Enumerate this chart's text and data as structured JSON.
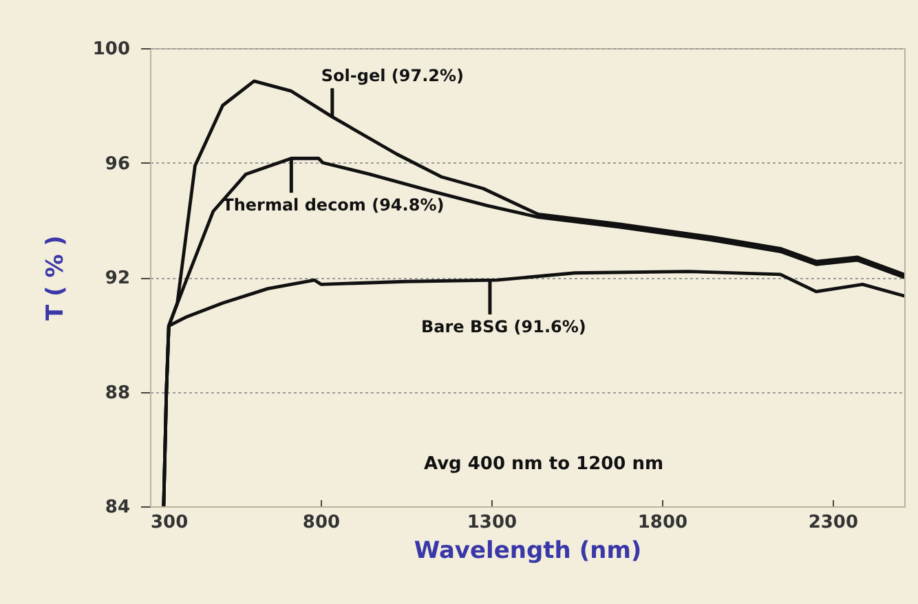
{
  "chart_data": {
    "type": "line",
    "xlabel": "Wavelength (nm)",
    "ylabel": "T ( % )",
    "xlim": [
      300,
      2510
    ],
    "xticks": [
      300,
      800,
      1300,
      1800,
      2300
    ],
    "ylim": [
      84,
      100
    ],
    "yticks": [
      84,
      88,
      92,
      96,
      100
    ],
    "grid": "y",
    "line_style": "solid",
    "series": [
      {
        "color": "#111111",
        "x": [
          340,
          348,
          355,
          380,
          432,
          513,
          605,
          714,
          834,
          1023,
          1155,
          1276,
          1437,
          1677,
          1946,
          2147,
          2252,
          2372,
          2509
        ],
        "values": [
          84,
          88,
          90.3,
          91.1,
          95.9,
          98.0,
          98.85,
          98.5,
          97.6,
          96.3,
          95.5,
          95.1,
          94.2,
          93.85,
          93.4,
          93.0,
          92.55,
          92.7,
          92.1
        ]
      },
      {
        "color": "#111111",
        "x": [
          340,
          348,
          355,
          400,
          485,
          581,
          714,
          794,
          806,
          943,
          1127,
          1288,
          1437,
          1677,
          1946,
          2147,
          2252,
          2372,
          2509
        ],
        "values": [
          84,
          88,
          90.3,
          91.7,
          94.3,
          95.6,
          96.15,
          96.15,
          96.0,
          95.6,
          95.0,
          94.5,
          94.1,
          93.75,
          93.3,
          92.9,
          92.45,
          92.6,
          92.0
        ]
      },
      {
        "color": "#111111",
        "x": [
          340,
          348,
          355,
          404,
          513,
          645,
          782,
          802,
          1047,
          1316,
          1545,
          1878,
          2147,
          2252,
          2388,
          2509
        ],
        "values": [
          84,
          88,
          90.3,
          90.6,
          91.1,
          91.6,
          91.9,
          91.75,
          91.85,
          91.9,
          92.15,
          92.2,
          92.1,
          91.5,
          91.75,
          91.35
        ]
      }
    ],
    "annotations": [
      {
        "text": "Sol-gel (97.2%)",
        "x": 834,
        "y": 97.6
      },
      {
        "text": "Thermal decom (94.8%)",
        "x": 714,
        "y": 96.15
      },
      {
        "text": "Bare BSG (91.6%)",
        "x": 1296,
        "y": 91.9
      },
      "Avg 400 nm to 1200 nm"
    ]
  }
}
